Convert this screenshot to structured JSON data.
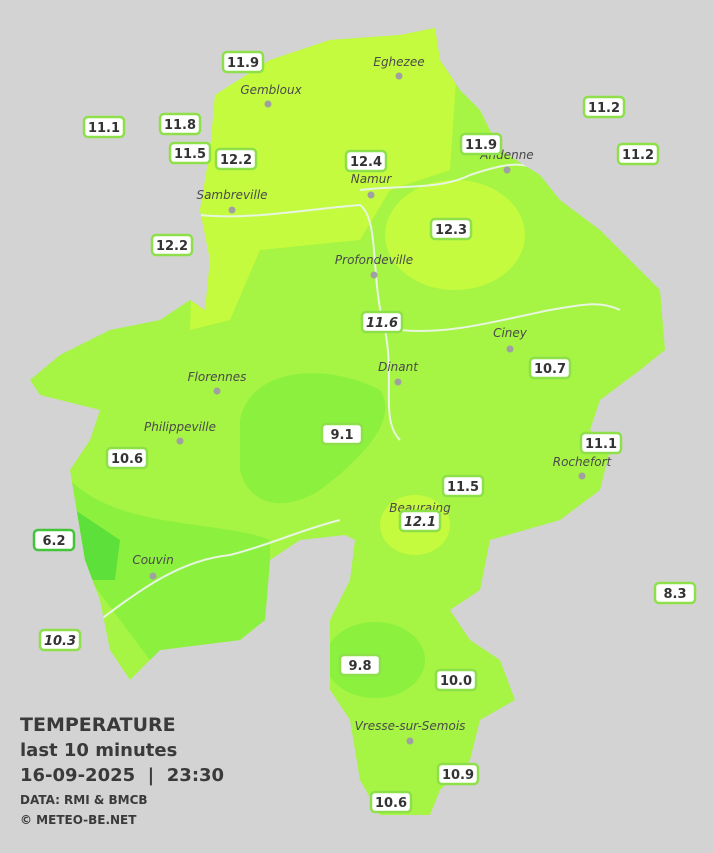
{
  "legend": {
    "title": "TEMPERATURE",
    "subtitle": "last 10 minutes",
    "datetime": "16-09-2025  |  23:30",
    "source": "DATA: RMI & BMCB",
    "copyright": "© METEO-BE.NET"
  },
  "cities": [
    "Eghezee",
    "Gembloux",
    "Andenne",
    "Namur",
    "Sambreville",
    "Profondeville",
    "Ciney",
    "Dinant",
    "Florennes",
    "Philippeville",
    "Rochefort",
    "Beauraing",
    "Couvin",
    "Vresse-sur-Semois"
  ],
  "stations": [
    "11.9",
    "11.1",
    "11.8",
    "11.5",
    "12.2",
    "12.4",
    "11.9",
    "11.2",
    "11.2",
    "12.2",
    "12.3",
    "11.6",
    "10.7",
    "9.1",
    "10.6",
    "11.1",
    "11.5",
    "12.1",
    "6.2",
    "8.3",
    "10.3",
    "9.8",
    "10.0",
    "10.9",
    "10.6"
  ]
}
